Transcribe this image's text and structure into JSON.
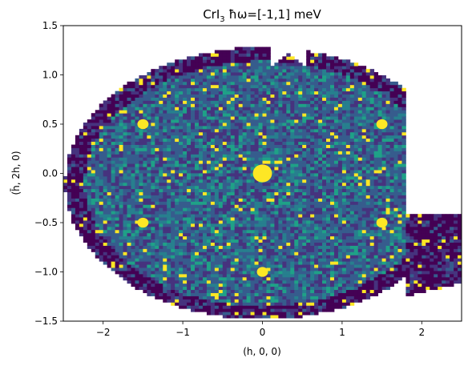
{
  "chart_data": {
    "type": "heatmap",
    "title_prefix": "CrI",
    "title_sub": "3",
    "title_suffix": " ħω=[-1,1] meV",
    "xlabel": "(h, 0, 0)",
    "ylabel": "(h̄, 2h, 0)",
    "xlim": [
      -2.5,
      2.5
    ],
    "ylim": [
      -1.5,
      1.5
    ],
    "xticks": [
      -2,
      -1,
      0,
      1,
      2
    ],
    "xtick_labels": [
      "−2",
      "−1",
      "0",
      "1",
      "2"
    ],
    "yticks": [
      -1.5,
      -1.0,
      -0.5,
      0.0,
      0.5,
      1.0,
      1.5
    ],
    "ytick_labels": [
      "−1.5",
      "−1.0",
      "−0.5",
      "0.0",
      "0.5",
      "1.0",
      "1.5"
    ],
    "colormap": "viridis",
    "colors": {
      "background": "#440154",
      "low": "#46337e",
      "mid": "#365c8d",
      "mid2": "#277f8e",
      "high": "#1fa187",
      "saturated": "#fde725"
    },
    "bragg_peaks": [
      {
        "h": 0.0,
        "k": 0.0
      },
      {
        "h": -1.5,
        "k": 0.5
      },
      {
        "h": 1.5,
        "k": 0.5
      },
      {
        "h": -1.5,
        "k": -0.5
      },
      {
        "h": 1.5,
        "k": -0.5
      },
      {
        "h": 0.0,
        "k": -1.0
      }
    ]
  }
}
